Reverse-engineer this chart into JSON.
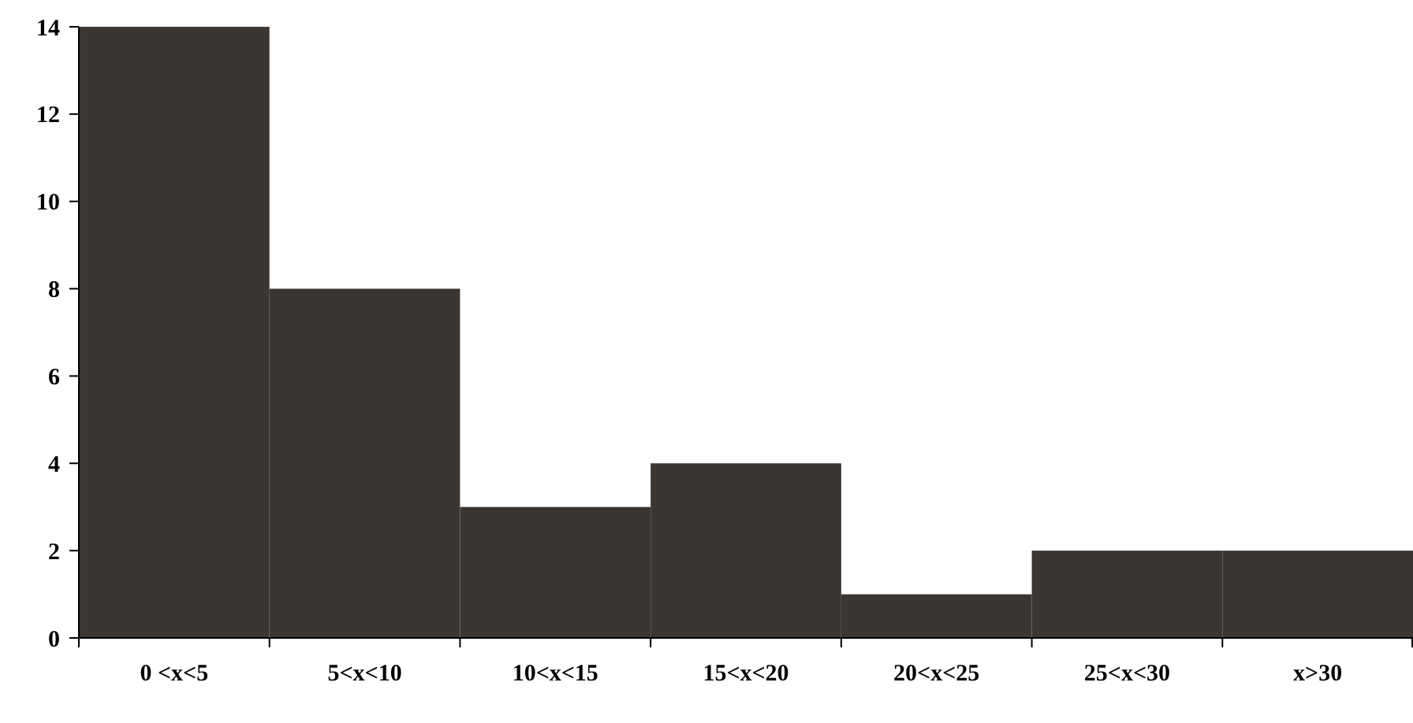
{
  "chart_data": {
    "type": "bar",
    "categories": [
      "0 <x<5",
      "5<x<10",
      "10<x<15",
      "15<x<20",
      "20<x<25",
      "25<x<30",
      "x>30"
    ],
    "values": [
      14,
      8,
      3,
      4,
      1,
      2,
      2
    ],
    "color": "#3b3631",
    "ylim": [
      0,
      14
    ],
    "yticks": [
      0,
      2,
      4,
      6,
      8,
      10,
      12,
      14
    ]
  }
}
